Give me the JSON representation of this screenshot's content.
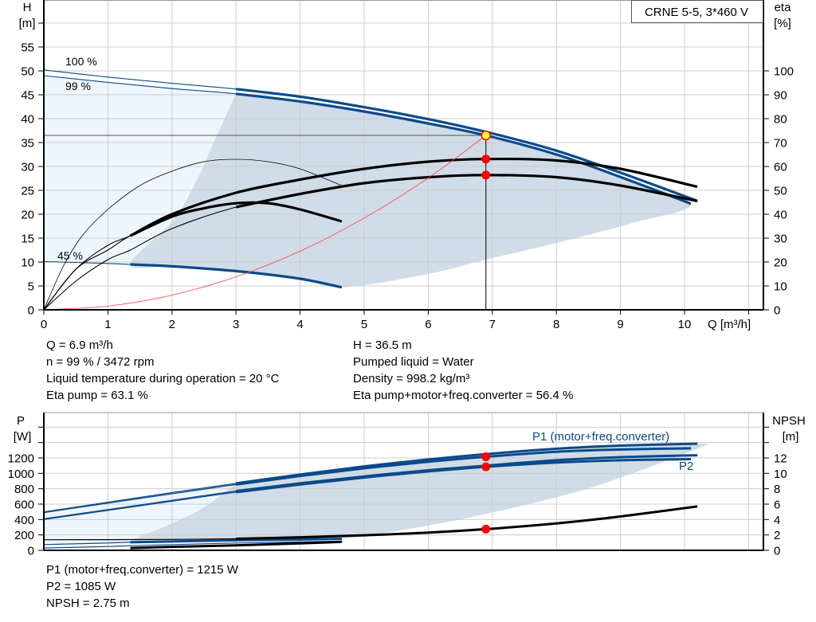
{
  "chart_data": [
    {
      "type": "line",
      "title_box": "CRNE 5-5, 3*460 V",
      "xlabel": "Q [m³/h]",
      "ylabel_left": [
        "H",
        "[m]"
      ],
      "ylabel_right": [
        "eta",
        "[%]"
      ],
      "xlim": [
        0,
        11
      ],
      "ylim_left": [
        0,
        60
      ],
      "ylim_right": [
        0,
        120
      ],
      "x_ticks": [
        "0",
        "1",
        "2",
        "3",
        "4",
        "5",
        "6",
        "7",
        "8",
        "9",
        "10"
      ],
      "y_left_ticks": [
        "0",
        "5",
        "10",
        "15",
        "20",
        "25",
        "30",
        "35",
        "40",
        "45",
        "50",
        "55"
      ],
      "y_right_ticks": [
        "0",
        "10",
        "20",
        "30",
        "40",
        "50",
        "60",
        "70",
        "80",
        "90",
        "100"
      ],
      "grid": true,
      "series": [
        {
          "id": "qh_100",
          "name": "100 %",
          "axis": "left",
          "color": "#0a4a8a",
          "points": [
            [
              0,
              50.2
            ],
            [
              1,
              48.7
            ],
            [
              2,
              47.4
            ],
            [
              3,
              46.2
            ],
            [
              4,
              44.6
            ],
            [
              5,
              42.4
            ],
            [
              6,
              39.9
            ],
            [
              7,
              36.9
            ],
            [
              8,
              33.3
            ],
            [
              9,
              28.7
            ],
            [
              10.2,
              22.8
            ]
          ]
        },
        {
          "id": "qh_99",
          "name": "99 %",
          "axis": "left",
          "color": "#0a4a8a",
          "points": [
            [
              0,
              49
            ],
            [
              1,
              47.6
            ],
            [
              2,
              46.3
            ],
            [
              3,
              45.2
            ],
            [
              4,
              43.6
            ],
            [
              5,
              41.5
            ],
            [
              6,
              39
            ],
            [
              6.9,
              36.5
            ],
            [
              8,
              32.5
            ],
            [
              9,
              27.8
            ],
            [
              10.1,
              22.2
            ]
          ]
        },
        {
          "id": "qh_45",
          "name": "45 %",
          "axis": "left",
          "color": "#0a4a8a",
          "points": [
            [
              0,
              10.1
            ],
            [
              1,
              9.7
            ],
            [
              1.35,
              9.5
            ],
            [
              2,
              9.1
            ],
            [
              3,
              8.1
            ],
            [
              4,
              6.5
            ],
            [
              4.65,
              4.7
            ]
          ]
        },
        {
          "id": "eta_pump",
          "axis": "right",
          "color": "#000000",
          "points": [
            [
              0,
              0
            ],
            [
              0.5,
              17
            ],
            [
              1,
              27
            ],
            [
              1.35,
              31
            ],
            [
              2,
              40
            ],
            [
              3,
              49
            ],
            [
              4,
              54.5
            ],
            [
              5,
              59
            ],
            [
              6,
              62
            ],
            [
              6.9,
              63.1
            ],
            [
              8,
              62.5
            ],
            [
              9,
              59
            ],
            [
              10.2,
              51.5
            ]
          ]
        },
        {
          "id": "eta_total",
          "axis": "right",
          "color": "#000000",
          "points": [
            [
              0,
              0
            ],
            [
              0.5,
              12
            ],
            [
              1,
              21
            ],
            [
              1.35,
              25
            ],
            [
              2,
              34
            ],
            [
              3,
              43
            ],
            [
              4,
              48.5
            ],
            [
              5,
              53
            ],
            [
              6,
              55.5
            ],
            [
              6.9,
              56.4
            ],
            [
              8,
              55.5
            ],
            [
              9,
              52
            ],
            [
              10.2,
              45.5
            ]
          ]
        },
        {
          "id": "eta_pump_45",
          "axis": "right",
          "color": "#000000",
          "points": [
            [
              0,
              0
            ],
            [
              0.3,
              18
            ],
            [
              0.6,
              31
            ],
            [
              1,
              42
            ],
            [
              1.5,
              52
            ],
            [
              2,
              58
            ],
            [
              2.5,
              62
            ],
            [
              3,
              63
            ],
            [
              3.5,
              62
            ],
            [
              4,
              59
            ],
            [
              4.65,
              52
            ]
          ]
        },
        {
          "id": "eta_total_45",
          "axis": "right",
          "color": "#000000",
          "points": [
            [
              0,
              0
            ],
            [
              0.5,
              17
            ],
            [
              1,
              25
            ],
            [
              1.35,
              31
            ],
            [
              2,
              39
            ],
            [
              2.5,
              42.5
            ],
            [
              3,
              44.6
            ],
            [
              3.5,
              44.6
            ],
            [
              4,
              42
            ],
            [
              4.65,
              37
            ]
          ]
        },
        {
          "id": "system_curve",
          "axis": "left",
          "color": "#ff3b3b",
          "points": [
            [
              0,
              0
            ],
            [
              1,
              0.77
            ],
            [
              2,
              3.07
            ],
            [
              3,
              6.9
            ],
            [
              4,
              12.27
            ],
            [
              5,
              19.2
            ],
            [
              6,
              27.6
            ],
            [
              6.9,
              36.5
            ]
          ]
        }
      ],
      "operating_range": [
        [
          3,
          45.2
        ],
        [
          4,
          43.6
        ],
        [
          5,
          41.5
        ],
        [
          6,
          39
        ],
        [
          6.9,
          36.5
        ],
        [
          8,
          32.5
        ],
        [
          9,
          27.8
        ],
        [
          10.1,
          22.2
        ],
        [
          9.2,
          18.2
        ],
        [
          8,
          14
        ],
        [
          6.9,
          10.5
        ],
        [
          6,
          7.5
        ],
        [
          4.65,
          4.7
        ],
        [
          4,
          6.5
        ],
        [
          3,
          8.1
        ],
        [
          2,
          9.1
        ],
        [
          1.35,
          9.5
        ],
        [
          2,
          18.5
        ],
        [
          2.4,
          27.5
        ],
        [
          2.65,
          35
        ],
        [
          3,
          45.2
        ]
      ],
      "extended_range": [
        [
          0,
          49
        ],
        [
          1,
          47.6
        ],
        [
          2,
          46.3
        ],
        [
          3,
          45.2
        ],
        [
          2.65,
          35
        ],
        [
          2.4,
          27.5
        ],
        [
          2,
          18.5
        ],
        [
          1.35,
          9.5
        ],
        [
          1,
          9.7
        ],
        [
          0,
          10.1
        ]
      ],
      "duty_point": {
        "Q": 6.9,
        "H": 36.5,
        "eta_pump": 63.1,
        "eta_total": 56.4
      }
    },
    {
      "type": "line",
      "ylabel_left": [
        "P",
        "[W]"
      ],
      "ylabel_right": [
        "NPSH",
        "[m]"
      ],
      "xlim": [
        0,
        11
      ],
      "ylim_left": [
        0,
        1780
      ],
      "ylim_right": [
        0,
        17.8
      ],
      "y_left_ticks": [
        "0",
        "200",
        "400",
        "600",
        "800",
        "1000",
        "1200"
      ],
      "y_right_ticks": [
        "0",
        "2",
        "4",
        "6",
        "8",
        "10",
        "12"
      ],
      "grid": true,
      "labels": {
        "p1": "P1 (motor+freq.converter)",
        "p2": "P2"
      },
      "series": [
        {
          "id": "p1_100",
          "axis": "left",
          "color": "#0a4a8a",
          "points": [
            [
              0,
              500
            ],
            [
              1,
              625
            ],
            [
              2,
              750
            ],
            [
              3,
              870
            ],
            [
              4,
              985
            ],
            [
              5,
              1090
            ],
            [
              6,
              1180
            ],
            [
              6.9,
              1250
            ],
            [
              8,
              1320
            ],
            [
              9,
              1360
            ],
            [
              10.2,
              1385
            ]
          ]
        },
        {
          "id": "p1_99",
          "name": "P1 (motor+freq.converter)",
          "axis": "left",
          "color": "#0a4a8a",
          "points": [
            [
              0,
              490
            ],
            [
              1,
              612
            ],
            [
              2,
              735
            ],
            [
              3,
              855
            ],
            [
              4,
              965
            ],
            [
              5,
              1065
            ],
            [
              6,
              1150
            ],
            [
              6.9,
              1215
            ],
            [
              8,
              1280
            ],
            [
              9,
              1310
            ],
            [
              10.1,
              1325
            ]
          ]
        },
        {
          "id": "p2_100",
          "axis": "left",
          "color": "#0a4a8a",
          "points": [
            [
              0,
              410
            ],
            [
              1,
              530
            ],
            [
              2,
              650
            ],
            [
              3,
              770
            ],
            [
              4,
              870
            ],
            [
              5,
              960
            ],
            [
              6,
              1040
            ],
            [
              6.9,
              1100
            ],
            [
              8,
              1170
            ],
            [
              9,
              1210
            ],
            [
              10.2,
              1235
            ]
          ]
        },
        {
          "id": "p2_99",
          "name": "P2",
          "axis": "left",
          "color": "#0a4a8a",
          "points": [
            [
              0,
              400
            ],
            [
              1,
              518
            ],
            [
              2,
              637
            ],
            [
              3,
              755
            ],
            [
              4,
              855
            ],
            [
              5,
              945
            ],
            [
              6,
              1025
            ],
            [
              6.9,
              1085
            ],
            [
              8,
              1140
            ],
            [
              9,
              1170
            ],
            [
              10.1,
              1185
            ]
          ]
        },
        {
          "id": "p1_45",
          "axis": "left",
          "color": "#0a4a8a",
          "points": [
            [
              0,
              75
            ],
            [
              1,
              95
            ],
            [
              1.35,
              105
            ],
            [
              2,
              115
            ],
            [
              3,
              130
            ],
            [
              4,
              140
            ],
            [
              4.65,
              150
            ]
          ]
        },
        {
          "id": "p2_45",
          "axis": "left",
          "color": "#0a4a8a",
          "points": [
            [
              0,
              30
            ],
            [
              1,
              50
            ],
            [
              1.35,
              60
            ],
            [
              2,
              75
            ],
            [
              3,
              95
            ],
            [
              4,
              110
            ],
            [
              4.65,
              120
            ]
          ]
        },
        {
          "id": "npsh",
          "axis": "right",
          "color": "#000000",
          "points": [
            [
              0,
              1.38
            ],
            [
              1,
              1.39
            ],
            [
              2,
              1.42
            ],
            [
              3,
              1.5
            ],
            [
              4,
              1.7
            ],
            [
              5,
              1.95
            ],
            [
              6,
              2.3
            ],
            [
              6.9,
              2.75
            ],
            [
              8,
              3.5
            ],
            [
              9,
              4.4
            ],
            [
              10.2,
              5.7
            ]
          ]
        },
        {
          "id": "npsh_45",
          "axis": "right",
          "color": "#000000",
          "points": [
            [
              1.35,
              0.3
            ],
            [
              2,
              0.45
            ],
            [
              3,
              0.65
            ],
            [
              4,
              0.9
            ],
            [
              4.65,
              1.1
            ]
          ]
        }
      ],
      "operating_range": [
        [
          3,
          870
        ],
        [
          4,
          985
        ],
        [
          5,
          1090
        ],
        [
          6,
          1180
        ],
        [
          6.9,
          1250
        ],
        [
          8,
          1320
        ],
        [
          9,
          1360
        ],
        [
          10.2,
          1385
        ],
        [
          10.2,
          1320
        ],
        [
          8.5,
          805
        ],
        [
          6.8,
          455
        ],
        [
          5.5,
          250
        ],
        [
          4.65,
          150
        ],
        [
          4,
          140
        ],
        [
          3,
          130
        ],
        [
          2,
          115
        ],
        [
          1.35,
          105
        ],
        [
          2,
          350
        ],
        [
          2.5,
          560
        ],
        [
          3,
          870
        ]
      ],
      "extended_range": [
        [
          0,
          500
        ],
        [
          1,
          625
        ],
        [
          2,
          750
        ],
        [
          3,
          870
        ],
        [
          2.5,
          560
        ],
        [
          2,
          350
        ],
        [
          1.35,
          105
        ],
        [
          1,
          95
        ],
        [
          0,
          75
        ]
      ],
      "duty_point": {
        "Q": 6.9,
        "P1": 1215,
        "P2": 1085,
        "NPSH": 2.75
      }
    }
  ],
  "colors": {
    "curve_blue": "#0a4a8a",
    "operating_shade": "#d0dce7",
    "extended_shade": "#eef6fd",
    "duty_point": "#ff0000",
    "duty_point_highlight": "#ffff33",
    "grid": "#cccccc"
  },
  "info_top": {
    "left": [
      "Q = 6.9 m³/h",
      "n = 99 % / 3472 rpm",
      "Liquid temperature during operation = 20 °C",
      "Eta pump = 63.1 %"
    ],
    "right": [
      "H = 36.5 m",
      "Pumped liquid = Water",
      "Density = 998.2 kg/m³",
      "Eta pump+motor+freq.converter = 56.4 %"
    ]
  },
  "info_bottom": [
    "P1 (motor+freq.converter) = 1215 W",
    "P2 = 1085 W",
    "NPSH = 2.75 m"
  ]
}
